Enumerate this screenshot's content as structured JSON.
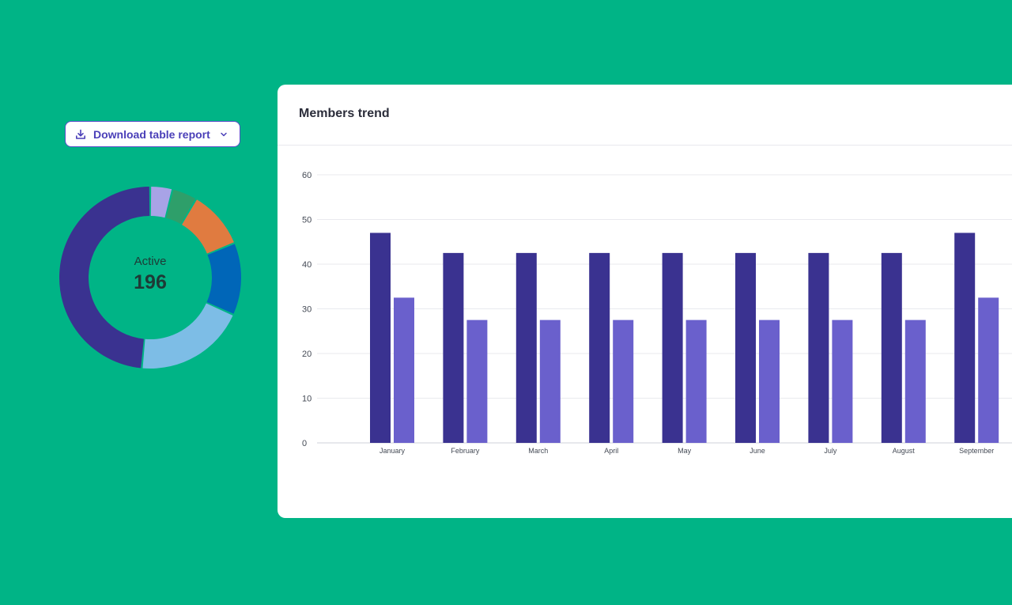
{
  "download_button": {
    "label": "Download table report",
    "icon": "download-icon",
    "chevron": "chevron-down-icon"
  },
  "donut": {
    "center_label": "Active",
    "center_value": "196",
    "slices": [
      {
        "value": 4,
        "color": "#a8a3e6"
      },
      {
        "value": 4.5,
        "color": "#2e9f6a"
      },
      {
        "value": 10.5,
        "color": "#e07b40"
      },
      {
        "value": 13,
        "color": "#0066b8"
      },
      {
        "value": 20,
        "color": "#7dbde6"
      },
      {
        "value": 49,
        "color": "#3a3290"
      }
    ]
  },
  "card": {
    "title": "Members trend"
  },
  "chart_data": {
    "type": "bar",
    "title": "Members trend",
    "categories": [
      "January",
      "February",
      "March",
      "April",
      "May",
      "June",
      "July",
      "August",
      "September"
    ],
    "series": [
      {
        "color": "#3a3290",
        "values": [
          47,
          42.5,
          42.5,
          42.5,
          42.5,
          42.5,
          42.5,
          42.5,
          47
        ]
      },
      {
        "color": "#6a60cc",
        "values": [
          32.5,
          27.5,
          27.5,
          27.5,
          27.5,
          27.5,
          27.5,
          27.5,
          32.5
        ]
      }
    ],
    "ylim": [
      0,
      60
    ],
    "yticks": [
      "0",
      "10",
      "20",
      "30",
      "40",
      "50",
      "60"
    ],
    "grid": true
  }
}
